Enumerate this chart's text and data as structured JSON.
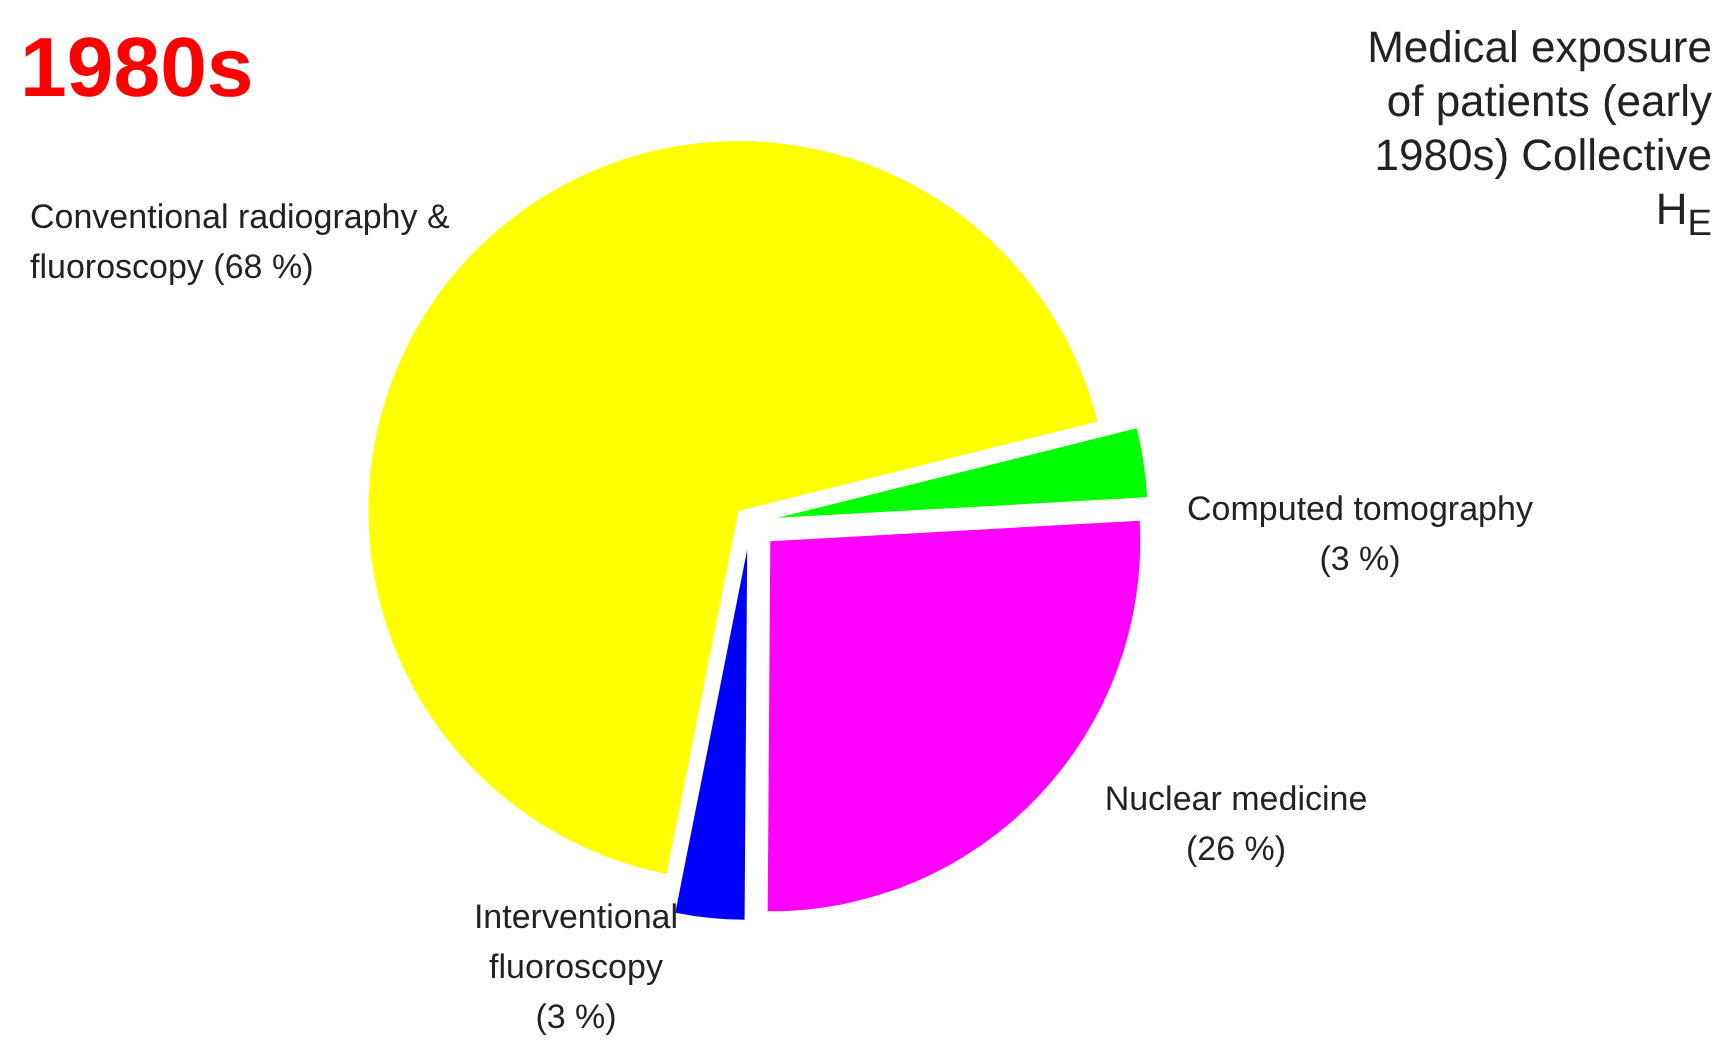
{
  "chart_data": {
    "type": "pie",
    "title": "1980s",
    "subtitle": "Medical exposure of patients (early 1980s) Collective H$_{E}$",
    "categories": [
      "Computed tomography",
      "Nuclear medicine",
      "Interventional fluoroscopy",
      "Conventional radiography & fluoroscopy"
    ],
    "values": [
      3,
      26,
      3,
      68
    ],
    "colors": [
      "#00ff00",
      "#ff00ff",
      "#0000ff",
      "#ffff00"
    ],
    "value_labels": [
      "(3 %)",
      "(26 %)",
      "(3 %)",
      "(68 %)"
    ]
  }
}
